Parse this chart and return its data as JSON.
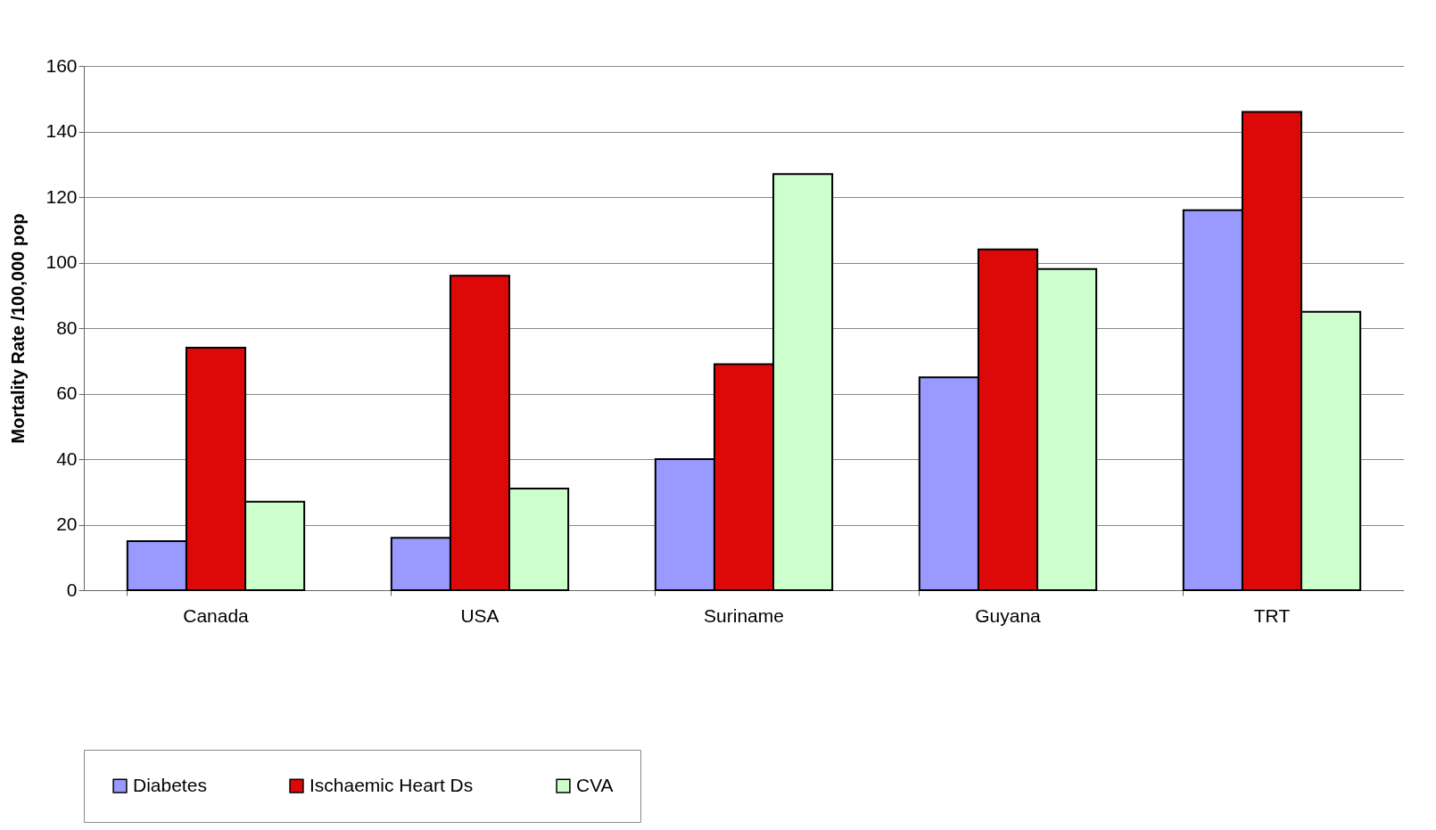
{
  "chart_data": {
    "type": "bar",
    "ylabel": "Mortality Rate /100,000 pop",
    "categories": [
      "Canada",
      "USA",
      "Suriname",
      "Guyana",
      "TRT"
    ],
    "series": [
      {
        "name": "Diabetes",
        "color": "#9999ff",
        "values": [
          15,
          16,
          40,
          65,
          116
        ]
      },
      {
        "name": "Ischaemic Heart Ds",
        "color": "#dd0808",
        "values": [
          74,
          96,
          69,
          104,
          146
        ]
      },
      {
        "name": "CVA",
        "color": "#ccffcc",
        "values": [
          27,
          31,
          127,
          98,
          85
        ]
      }
    ],
    "ylim": [
      0,
      160
    ],
    "yticks": [
      0,
      20,
      40,
      60,
      80,
      100,
      120,
      140,
      160
    ],
    "grid": "y",
    "legend": "bottom"
  }
}
